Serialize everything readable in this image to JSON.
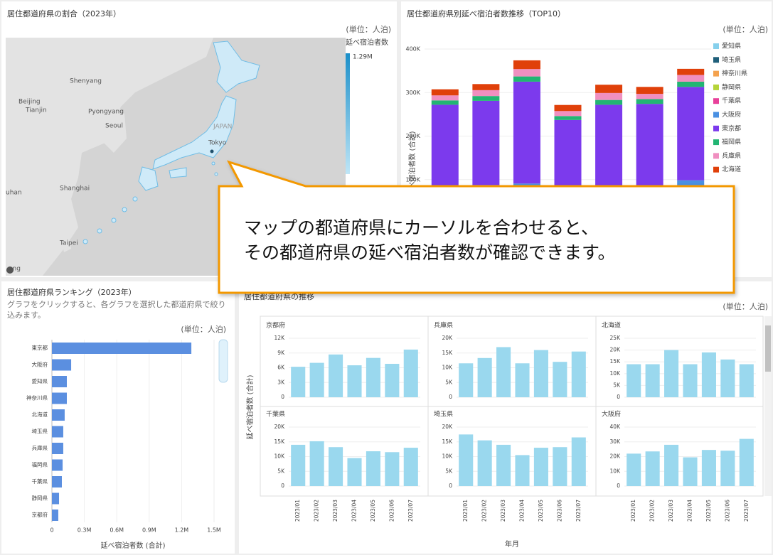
{
  "map_panel": {
    "title": "居住都道府県の割合（2023年）",
    "unit": "(単位：人泊)",
    "legend_title": "延べ宿泊者数",
    "legend_max": "1.29M",
    "labels": [
      "Shenyang",
      "Beijing",
      "Tianjin",
      "Pyongyang",
      "Seoul",
      "JAPAN",
      "Tokyo",
      "Shanghai",
      "uhan",
      "Taipei",
      "ong"
    ]
  },
  "callout": {
    "lines": [
      "マップの都道府県にカーソルを合わせると、",
      "その都道府県の延べ宿泊者数が確認できます。"
    ]
  },
  "chart_data": [
    {
      "type": "stacked_bar",
      "title": "居住都道府県別延べ宿泊者数推移（TOP10）",
      "unit": "(単位：人泊)",
      "ylabel": "延べ宿泊者数 (合計)",
      "ylim": [
        0,
        400000
      ],
      "yticks": [
        {
          "value": 100000,
          "label": "100K"
        },
        {
          "value": 200000,
          "label": "200K"
        },
        {
          "value": 300000,
          "label": "300K"
        },
        {
          "value": 400000,
          "label": "400K"
        }
      ],
      "series": [
        {
          "name": "愛知県",
          "color": "#86d0ec",
          "values": [
            13000,
            14000,
            15000,
            12000,
            13000,
            13000,
            16000
          ]
        },
        {
          "name": "埼玉県",
          "color": "#1f5f7a",
          "values": [
            17500,
            15500,
            14000,
            10500,
            13000,
            13000,
            16500
          ]
        },
        {
          "name": "神奈川県",
          "color": "#f4a24e",
          "values": [
            12000,
            13000,
            14000,
            11000,
            12000,
            12000,
            14000
          ]
        },
        {
          "name": "静岡県",
          "color": "#b5d43a",
          "values": [
            6000,
            6000,
            7000,
            5000,
            6000,
            6000,
            7000
          ]
        },
        {
          "name": "千葉県",
          "color": "#e8409a",
          "values": [
            14000,
            15000,
            13000,
            9500,
            12000,
            11500,
            13000
          ]
        },
        {
          "name": "大阪府",
          "color": "#4a90e2",
          "values": [
            22000,
            24000,
            28000,
            20000,
            24500,
            24000,
            32000
          ]
        },
        {
          "name": "東京都",
          "color": "#7c3aed",
          "values": [
            187500,
            193500,
            234000,
            169000,
            191500,
            194500,
            214500
          ]
        },
        {
          "name": "福岡県",
          "color": "#22b573",
          "values": [
            10000,
            11000,
            12000,
            9000,
            11000,
            11000,
            12000
          ]
        },
        {
          "name": "兵庫県",
          "color": "#f08fc0",
          "values": [
            11500,
            13500,
            17000,
            11500,
            16000,
            12000,
            15500
          ]
        },
        {
          "name": "北海道",
          "color": "#e0400a",
          "values": [
            14000,
            14000,
            20000,
            14000,
            19000,
            16000,
            14000
          ]
        }
      ]
    },
    {
      "type": "hbar",
      "title": "居住都道府県ランキング（2023年）",
      "subtitle": "グラフをクリックすると、各グラフを選択した都道府県で絞り込みます。",
      "unit": "(単位：人泊)",
      "xlabel": "延べ宿泊者数 (合計)",
      "categories": [
        "東京都",
        "大阪府",
        "愛知県",
        "神奈川県",
        "北海道",
        "埼玉県",
        "兵庫県",
        "福岡県",
        "千葉県",
        "静岡県",
        "京都府"
      ],
      "values": [
        1290000,
        178000,
        138000,
        138000,
        118000,
        105000,
        105000,
        99000,
        92000,
        66000,
        59000
      ],
      "color": "#5b8fe0",
      "xlim": [
        0,
        1500000
      ],
      "xticks": [
        0,
        {
          "value": 300000,
          "label": "0.3M"
        },
        {
          "value": 600000,
          "label": "0.6M"
        },
        {
          "value": 900000,
          "label": "0.9M"
        },
        {
          "value": 1200000,
          "label": "1.2M"
        },
        {
          "value": 1500000,
          "label": "1.5M"
        }
      ]
    },
    {
      "type": "facet_bar",
      "title": "居住都道府県の推移",
      "unit": "(単位：人泊)",
      "ylabel": "延べ宿泊者数 (合計)",
      "xlabel": "年月",
      "color": "#9ad8ee",
      "categories": [
        "2023/01",
        "2023/02",
        "2023/03",
        "2023/04",
        "2023/05",
        "2023/06",
        "2023/07"
      ],
      "facets": [
        {
          "title": "京都府",
          "ylim": [
            0,
            12000
          ],
          "yticks": [
            0,
            {
              "value": 3000,
              "label": "3K"
            },
            {
              "value": 6000,
              "label": "6K"
            },
            {
              "value": 9000,
              "label": "9K"
            },
            {
              "value": 12000,
              "label": "12K"
            }
          ],
          "values": [
            6200,
            7000,
            8700,
            6500,
            8000,
            6800,
            9700
          ]
        },
        {
          "title": "兵庫県",
          "ylim": [
            0,
            20000
          ],
          "yticks": [
            0,
            {
              "value": 5000,
              "label": "5K"
            },
            {
              "value": 10000,
              "label": "10K"
            },
            {
              "value": 15000,
              "label": "15K"
            },
            {
              "value": 20000,
              "label": "20K"
            }
          ],
          "values": [
            11500,
            13300,
            17000,
            11500,
            16000,
            12000,
            15500
          ]
        },
        {
          "title": "北海道",
          "ylim": [
            0,
            25000
          ],
          "yticks": [
            0,
            {
              "value": 5000,
              "label": "5K"
            },
            {
              "value": 10000,
              "label": "10K"
            },
            {
              "value": 15000,
              "label": "15K"
            },
            {
              "value": 20000,
              "label": "20K"
            },
            {
              "value": 25000,
              "label": "25K"
            }
          ],
          "values": [
            14000,
            14000,
            20000,
            14000,
            19000,
            16000,
            14000
          ]
        },
        {
          "title": "千葉県",
          "ylim": [
            0,
            20000
          ],
          "yticks": [
            0,
            {
              "value": 5000,
              "label": "5K"
            },
            {
              "value": 10000,
              "label": "10K"
            },
            {
              "value": 15000,
              "label": "15K"
            },
            {
              "value": 20000,
              "label": "20K"
            }
          ],
          "values": [
            14000,
            15200,
            13200,
            9500,
            11800,
            11500,
            13000
          ]
        },
        {
          "title": "埼玉県",
          "ylim": [
            0,
            20000
          ],
          "yticks": [
            0,
            {
              "value": 5000,
              "label": "5K"
            },
            {
              "value": 10000,
              "label": "10K"
            },
            {
              "value": 15000,
              "label": "15K"
            },
            {
              "value": 20000,
              "label": "20K"
            }
          ],
          "values": [
            17500,
            15500,
            14000,
            10500,
            13000,
            13200,
            16500
          ]
        },
        {
          "title": "大阪府",
          "ylim": [
            0,
            40000
          ],
          "yticks": [
            0,
            {
              "value": 10000,
              "label": "10K"
            },
            {
              "value": 20000,
              "label": "20K"
            },
            {
              "value": 30000,
              "label": "30K"
            },
            {
              "value": 40000,
              "label": "40K"
            }
          ],
          "values": [
            22000,
            23500,
            28000,
            19500,
            24500,
            24000,
            32000
          ]
        }
      ]
    }
  ]
}
